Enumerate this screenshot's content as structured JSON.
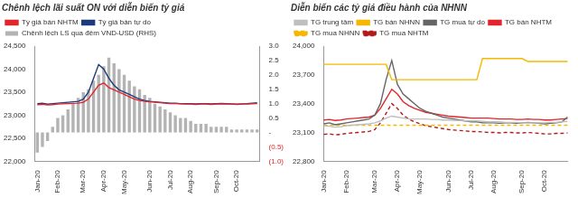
{
  "chart_data": [
    {
      "type": "bar",
      "title": "Chênh lệch lãi suất ON với diễn biến tỷ giá",
      "categories": [
        "Jan-20",
        null,
        null,
        null,
        "Feb-20",
        null,
        null,
        null,
        null,
        "Mar-20",
        null,
        null,
        null,
        "Apr-20",
        null,
        null,
        null,
        "May-20",
        null,
        null,
        null,
        null,
        "Jun-20",
        null,
        null,
        null,
        "Jul-20",
        null,
        null,
        null,
        "Aug-20",
        null,
        null,
        null,
        null,
        "Sep-20",
        null,
        null,
        null,
        "Oct-20",
        null,
        null,
        null,
        null
      ],
      "series": [
        {
          "name": "Chênh lệch LS qua đêm VND-USD (RHS)",
          "type": "bar",
          "axis": "y2",
          "color": "#b3b3b3",
          "values": [
            -0.7,
            -0.5,
            -0.3,
            0.2,
            0.5,
            0.6,
            0.8,
            1.0,
            1.2,
            1.4,
            1.5,
            1.8,
            2.0,
            2.3,
            2.6,
            2.4,
            2.2,
            2.0,
            1.8,
            1.6,
            1.5,
            1.3,
            1.2,
            1.0,
            0.9,
            0.8,
            0.7,
            0.6,
            0.5,
            0.5,
            0.4,
            0.3,
            0.3,
            0.3,
            0.2,
            0.2,
            0.2,
            0.2,
            0.1,
            0.1,
            0.1,
            0.1,
            0.1,
            0.1
          ]
        },
        {
          "name": "Tỷ giá bán NHTM",
          "type": "line",
          "color": "#e0262b",
          "marker": "none",
          "line_style": "solid",
          "values": [
            23230,
            23235,
            23225,
            23230,
            23240,
            23245,
            23250,
            23255,
            23260,
            23280,
            23350,
            23500,
            23650,
            23700,
            23600,
            23550,
            23500,
            23450,
            23400,
            23350,
            23320,
            23300,
            23290,
            23280,
            23270,
            23260,
            23250,
            23250,
            23245,
            23240,
            23240,
            23235,
            23240,
            23240,
            23235,
            23240,
            23245,
            23240,
            23240,
            23235,
            23240,
            23240,
            23245,
            23250
          ]
        },
        {
          "name": "Tỷ giá bán tự do",
          "type": "line",
          "color": "#1f3a7a",
          "marker": "none",
          "line_style": "solid",
          "values": [
            23250,
            23260,
            23240,
            23250,
            23260,
            23270,
            23280,
            23290,
            23300,
            23350,
            23500,
            23800,
            24100,
            24000,
            23800,
            23650,
            23550,
            23500,
            23450,
            23400,
            23350,
            23320,
            23300,
            23290,
            23280,
            23270,
            23260,
            23260,
            23250,
            23250,
            23250,
            23245,
            23250,
            23250,
            23245,
            23250,
            23255,
            23250,
            23245,
            23240,
            23245,
            23250,
            23260,
            23270
          ]
        }
      ],
      "ylim": [
        22000,
        24500
      ],
      "yticks": [
        {
          "value": 22000,
          "label": "22,000"
        },
        {
          "value": 22500,
          "label": "22,500"
        },
        {
          "value": 23000,
          "label": "23,000"
        },
        {
          "value": 23500,
          "label": "23,500"
        },
        {
          "value": 24000,
          "label": "24,000"
        },
        {
          "value": 24500,
          "label": "24,500"
        }
      ],
      "y2lim": [
        -1,
        3
      ],
      "y2ticks": [
        {
          "value": -1,
          "label": "(1.0)"
        },
        {
          "value": -0.5,
          "label": "(0.5)"
        },
        {
          "value": 0,
          "label": "-"
        },
        0.5,
        {
          "value": 1,
          "label": "1.0"
        },
        1.5,
        {
          "value": 2,
          "label": "2.0"
        },
        2.5,
        {
          "value": 3,
          "label": "3.0"
        }
      ],
      "grid": false,
      "legend": "top"
    },
    {
      "type": "line",
      "title": "Diễn biến các tỷ giá điều hành của NHNN",
      "categories": [
        "Jan-20",
        null,
        null,
        null,
        "Feb-20",
        null,
        null,
        null,
        null,
        "Mar-20",
        null,
        null,
        null,
        "Apr-20",
        null,
        null,
        null,
        "May-20",
        null,
        null,
        null,
        null,
        "Jun-20",
        null,
        null,
        null,
        "Jul-20",
        null,
        null,
        null,
        "Aug-20",
        null,
        null,
        null,
        null,
        "Sep-20",
        null,
        null,
        null,
        "Oct-20",
        null,
        null,
        null,
        null
      ],
      "series": [
        {
          "name": "TG trung tâm",
          "color": "#bfbfbf",
          "marker": "none",
          "line_style": "solid",
          "values": [
            23170,
            23165,
            23155,
            23160,
            23170,
            23175,
            23180,
            23185,
            23190,
            23200,
            23220,
            23250,
            23270,
            23260,
            23250,
            23240,
            23240,
            23240,
            23240,
            23235,
            23235,
            23230,
            23230,
            23225,
            23225,
            23220,
            23220,
            23220,
            23215,
            23210,
            23210,
            23210,
            23205,
            23205,
            23205,
            23200,
            23200,
            23200,
            23200,
            23200,
            23205,
            23205,
            23210,
            23215
          ]
        },
        {
          "name": "TG bán NHNN",
          "color": "#f5b800",
          "marker": "none",
          "line_style": "solid",
          "values": [
            23810,
            23810,
            23810,
            23810,
            23810,
            23810,
            23810,
            23810,
            23810,
            23810,
            23810,
            23810,
            23650,
            23650,
            23650,
            23650,
            23650,
            23650,
            23650,
            23650,
            23650,
            23650,
            23650,
            23650,
            23650,
            23650,
            23650,
            23650,
            23870,
            23870,
            23870,
            23870,
            23870,
            23870,
            23870,
            23870,
            23840,
            23840,
            23840,
            23840,
            23840,
            23840,
            23840,
            23840
          ]
        },
        {
          "name": "TG mua tự do",
          "color": "#666666",
          "marker": "none",
          "line_style": "solid",
          "values": [
            23190,
            23200,
            23180,
            23190,
            23200,
            23210,
            23220,
            23230,
            23240,
            23280,
            23400,
            23650,
            23850,
            23600,
            23500,
            23450,
            23400,
            23350,
            23320,
            23300,
            23280,
            23260,
            23250,
            23240,
            23230,
            23220,
            23210,
            23210,
            23200,
            23200,
            23200,
            23195,
            23200,
            23200,
            23195,
            23200,
            23205,
            23200,
            23195,
            23190,
            23195,
            23200,
            23210,
            23260
          ]
        },
        {
          "name": "TG bán NHTM",
          "color": "#e0262b",
          "marker": "none",
          "line_style": "solid",
          "values": [
            23230,
            23235,
            23225,
            23230,
            23240,
            23245,
            23250,
            23255,
            23260,
            23280,
            23350,
            23450,
            23550,
            23500,
            23420,
            23380,
            23350,
            23330,
            23310,
            23300,
            23290,
            23280,
            23270,
            23265,
            23260,
            23255,
            23250,
            23250,
            23250,
            23250,
            23245,
            23240,
            23240,
            23240,
            23235,
            23235,
            23240,
            23235,
            23235,
            23230,
            23230,
            23235,
            23240,
            23245
          ]
        },
        {
          "name": "TG mua NHNN",
          "color": "#f5b800",
          "marker": "none",
          "line_style": "dashed",
          "values": [
            23175,
            23175,
            23175,
            23175,
            23175,
            23175,
            23175,
            23175,
            23175,
            23175,
            23175,
            23175,
            23175,
            23175,
            23175,
            23175,
            23175,
            23175,
            23175,
            23175,
            23175,
            23175,
            23175,
            23175,
            23175,
            23175,
            23175,
            23175,
            23175,
            23175,
            23175,
            23175,
            23175,
            23175,
            23175,
            23175,
            23175,
            23175,
            23175,
            23175,
            23175,
            23175,
            23175,
            23175
          ]
        },
        {
          "name": "TG mua NHTM",
          "color": "#b01c1c",
          "marker": "none",
          "line_style": "dashed",
          "values": [
            23080,
            23085,
            23075,
            23080,
            23090,
            23095,
            23100,
            23105,
            23110,
            23130,
            23200,
            23300,
            23400,
            23350,
            23280,
            23240,
            23210,
            23190,
            23170,
            23160,
            23150,
            23140,
            23130,
            23125,
            23120,
            23115,
            23110,
            23110,
            23105,
            23100,
            23100,
            23095,
            23100,
            23100,
            23095,
            23095,
            23100,
            23095,
            23090,
            23085,
            23085,
            23090,
            23090,
            23095
          ]
        }
      ],
      "ylim": [
        22800,
        24000
      ],
      "yticks": [
        {
          "value": 22800,
          "label": "22,800"
        },
        {
          "value": 23100,
          "label": "23,100"
        },
        {
          "value": 23400,
          "label": "23,400"
        },
        {
          "value": 23700,
          "label": "23,700"
        },
        {
          "value": 24000,
          "label": "24,000"
        }
      ],
      "grid": false,
      "legend": "top"
    }
  ]
}
